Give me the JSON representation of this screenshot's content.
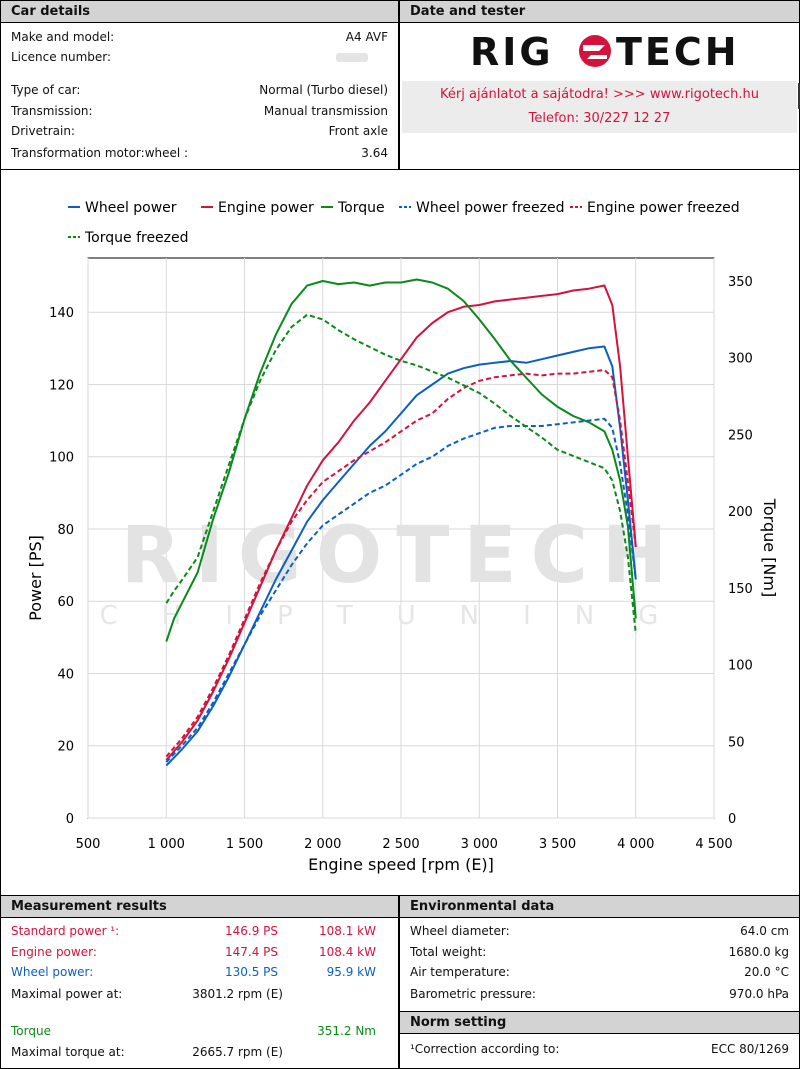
{
  "car_details": {
    "title": "Car details",
    "rows": [
      {
        "key": "Make and model:",
        "value": "A4 AVF"
      },
      {
        "key": "Licence number:",
        "value": ""
      },
      {
        "key": "Type of car:",
        "value": "Normal (Turbo diesel)"
      },
      {
        "key": "Transmission:",
        "value": "Manual transmission"
      },
      {
        "key": "Drivetrain:",
        "value": "Front axle"
      },
      {
        "key": "Transformation motor:wheel :",
        "value": "3.64"
      }
    ]
  },
  "date_tester": {
    "title": "Date and tester",
    "logo_text": "RIGOTECH",
    "promo_line1": "Kérj ajánlatot a sajátodra!  >>>  www.rigotech.hu",
    "promo_line2": "Telefon: 30/227 12 27"
  },
  "watermark": {
    "line1": "RIGOTECH",
    "line2": "CHIPTUNING"
  },
  "colors": {
    "wheel": "#0b5fc4",
    "engine": "#d4133c",
    "torque": "#0a8a1a"
  },
  "chart_data": {
    "type": "line",
    "xlabel": "Engine speed [rpm (E)]",
    "ylabel_left": "Power [PS]",
    "ylabel_right": "Torque [Nm]",
    "xlim": [
      500,
      4500
    ],
    "ylim_left": [
      0,
      155
    ],
    "ylim_right": [
      0,
      365
    ],
    "x_ticks": [
      500,
      1000,
      1500,
      2000,
      2500,
      3000,
      3500,
      4000,
      4500
    ],
    "x_tick_labels": [
      "500",
      "1 000",
      "1 500",
      "2 000",
      "2 500",
      "3 000",
      "3 500",
      "4 000",
      "4 500"
    ],
    "y_left_ticks": [
      0,
      20,
      40,
      60,
      80,
      100,
      120,
      140
    ],
    "y_right_ticks": [
      0,
      50,
      100,
      150,
      200,
      250,
      300,
      350
    ],
    "grid": true,
    "legend_position": "top",
    "series": [
      {
        "name": "Wheel power",
        "axis": "left",
        "color": "#0b5fc4",
        "dash": false,
        "x": [
          1000,
          1100,
          1200,
          1300,
          1400,
          1500,
          1600,
          1700,
          1800,
          1900,
          2000,
          2100,
          2200,
          2300,
          2400,
          2500,
          2600,
          2700,
          2800,
          2900,
          3000,
          3100,
          3200,
          3300,
          3400,
          3500,
          3600,
          3700,
          3800,
          3850,
          3900,
          3950,
          4000
        ],
        "y": [
          14.5,
          19,
          24,
          31,
          39,
          48,
          57,
          66,
          74,
          82,
          88,
          93,
          98,
          103,
          107,
          112,
          117,
          120,
          123,
          124.5,
          125.5,
          126,
          126.5,
          126,
          127,
          128,
          129,
          130,
          130.5,
          125,
          108,
          88,
          66
        ]
      },
      {
        "name": "Engine power",
        "axis": "left",
        "color": "#d4133c",
        "dash": false,
        "x": [
          1000,
          1100,
          1200,
          1300,
          1400,
          1500,
          1600,
          1700,
          1800,
          1900,
          2000,
          2100,
          2200,
          2300,
          2400,
          2500,
          2600,
          2700,
          2800,
          2900,
          3000,
          3100,
          3200,
          3300,
          3400,
          3500,
          3600,
          3700,
          3800,
          3850,
          3900,
          3950,
          4000
        ],
        "y": [
          16,
          21,
          27,
          35,
          44,
          54,
          64,
          74,
          83,
          92,
          99,
          104,
          110,
          115,
          121,
          127,
          133,
          137,
          140,
          141.5,
          142,
          143,
          143.5,
          144,
          144.5,
          145,
          146,
          146.5,
          147.4,
          142,
          125,
          100,
          75
        ]
      },
      {
        "name": "Torque",
        "axis": "right",
        "color": "#0a8a1a",
        "dash": false,
        "x": [
          1000,
          1050,
          1100,
          1200,
          1300,
          1400,
          1500,
          1600,
          1700,
          1800,
          1900,
          2000,
          2100,
          2200,
          2300,
          2400,
          2500,
          2600,
          2700,
          2800,
          2900,
          3000,
          3100,
          3200,
          3300,
          3400,
          3500,
          3600,
          3700,
          3800,
          3850,
          3900,
          3950,
          4000
        ],
        "y": [
          115,
          130,
          140,
          160,
          195,
          225,
          260,
          290,
          315,
          335,
          347,
          350,
          348,
          349,
          347,
          349,
          349,
          351,
          349,
          345,
          337,
          325,
          312,
          298,
          287,
          276,
          268,
          262,
          258,
          252,
          240,
          220,
          190,
          130
        ]
      },
      {
        "name": "Wheel power freezed",
        "axis": "left",
        "color": "#0b5fc4",
        "dash": true,
        "x": [
          1000,
          1100,
          1200,
          1300,
          1400,
          1500,
          1600,
          1700,
          1800,
          1900,
          2000,
          2100,
          2200,
          2300,
          2400,
          2500,
          2600,
          2700,
          2800,
          2900,
          3000,
          3100,
          3200,
          3300,
          3400,
          3500,
          3600,
          3700,
          3800,
          3850,
          3900,
          3950,
          4000
        ],
        "y": [
          15.5,
          20,
          25,
          32,
          40,
          48,
          56,
          63,
          70,
          76,
          81,
          84,
          87,
          90,
          92,
          95,
          98,
          100,
          103,
          105,
          106.5,
          108,
          108.5,
          108.5,
          108.5,
          109,
          109.5,
          110,
          110.5,
          108,
          98,
          84,
          66
        ]
      },
      {
        "name": "Engine power freezed",
        "axis": "left",
        "color": "#d4133c",
        "dash": true,
        "x": [
          1000,
          1100,
          1200,
          1300,
          1400,
          1500,
          1600,
          1700,
          1800,
          1900,
          2000,
          2100,
          2200,
          2300,
          2400,
          2500,
          2600,
          2700,
          2800,
          2900,
          3000,
          3100,
          3200,
          3300,
          3400,
          3500,
          3600,
          3700,
          3800,
          3850,
          3900,
          3950,
          4000
        ],
        "y": [
          17,
          22,
          28,
          36,
          45,
          55,
          65,
          74,
          82,
          88,
          93,
          96,
          99,
          101.5,
          104,
          107,
          110,
          112,
          116,
          119,
          121,
          122,
          122.5,
          123,
          122.5,
          123,
          123,
          123.5,
          124,
          122,
          110,
          93,
          75
        ]
      },
      {
        "name": "Torque freezed",
        "axis": "right",
        "color": "#0a8a1a",
        "dash": true,
        "x": [
          1000,
          1050,
          1100,
          1200,
          1300,
          1400,
          1500,
          1600,
          1700,
          1800,
          1900,
          2000,
          2100,
          2200,
          2300,
          2400,
          2500,
          2600,
          2700,
          2800,
          2900,
          3000,
          3100,
          3200,
          3300,
          3400,
          3500,
          3600,
          3700,
          3800,
          3850,
          3900,
          3950,
          4000
        ],
        "y": [
          140,
          148,
          155,
          170,
          200,
          230,
          260,
          285,
          305,
          320,
          328,
          325,
          318,
          312,
          307,
          302,
          298,
          295,
          291,
          287,
          282,
          277,
          270,
          262,
          255,
          248,
          240,
          236,
          232,
          228,
          220,
          200,
          170,
          120
        ]
      }
    ]
  },
  "measurement": {
    "title": "Measurement results",
    "standard_power_label": "Standard power ¹:",
    "standard_power_ps": "146.9 PS",
    "standard_power_kw": "108.1 kW",
    "engine_power_label": "Engine power:",
    "engine_power_ps": "147.4 PS",
    "engine_power_kw": "108.4 kW",
    "wheel_power_label": "Wheel power:",
    "wheel_power_ps": "130.5 PS",
    "wheel_power_kw": "95.9 kW",
    "max_power_at_label": "Maximal power at:",
    "max_power_at": "3801.2 rpm (E)",
    "torque_label": "Torque",
    "torque_value": "351.2 Nm",
    "max_torque_at_label": "Maximal torque at:",
    "max_torque_at": "2665.7 rpm (E)"
  },
  "environment": {
    "title": "Environmental data",
    "rows": [
      {
        "key": "Wheel diameter:",
        "value": "64.0 cm"
      },
      {
        "key": "Total weight:",
        "value": "1680.0 kg"
      },
      {
        "key": "Air temperature:",
        "value": "20.0 °C"
      },
      {
        "key": "Barometric pressure:",
        "value": "970.0 hPa"
      }
    ]
  },
  "norm": {
    "title": "Norm setting",
    "key": "¹Correction according to:",
    "value": "ECC 80/1269"
  }
}
